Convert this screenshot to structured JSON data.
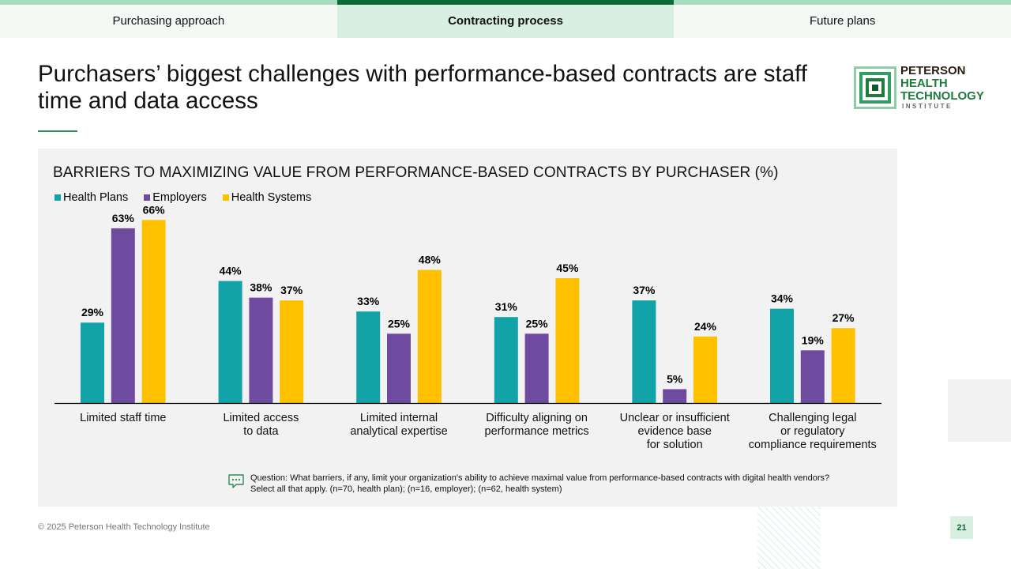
{
  "tabs": [
    {
      "label": "Purchasing approach"
    },
    {
      "label": "Contracting process"
    },
    {
      "label": "Future plans"
    }
  ],
  "title": "Purchasers’ biggest challenges with performance-based contracts are staff time and data access",
  "logo": {
    "line1": "PETERSON",
    "line2": "HEALTH",
    "line3": "TECHNOLOGY",
    "line4": "INSTITUTE"
  },
  "colors": {
    "health_plans": "#12a3a8",
    "employers": "#6f4ba0",
    "health_systems": "#ffc000"
  },
  "chart_data": {
    "type": "bar",
    "title": "BARRIERS TO MAXIMIZING VALUE FROM PERFORMANCE-BASED CONTRACTS BY PURCHASER (%)",
    "categories": [
      [
        "Limited staff time"
      ],
      [
        "Limited access",
        "to data"
      ],
      [
        "Limited internal",
        "analytical expertise"
      ],
      [
        "Difficulty aligning on",
        "performance metrics"
      ],
      [
        "Unclear or insufficient",
        "evidence base",
        "for solution"
      ],
      [
        "Challenging legal",
        "or regulatory",
        "compliance requirements"
      ]
    ],
    "series": [
      {
        "name": "Health Plans",
        "values": [
          29,
          44,
          33,
          31,
          37,
          34
        ]
      },
      {
        "name": "Employers",
        "values": [
          63,
          38,
          25,
          25,
          5,
          19
        ]
      },
      {
        "name": "Health Systems",
        "values": [
          66,
          37,
          48,
          45,
          24,
          27
        ]
      }
    ],
    "value_suffix": "%",
    "ylim": [
      0,
      70
    ],
    "legend": "top-left"
  },
  "note": {
    "line1": "Question: What barriers, if any, limit your organization's ability to achieve maximal value from performance-based contracts with digital health vendors?",
    "line2": "Select all that apply. (n=70, health plan); (n=16, employer); (n=62, health system)"
  },
  "footer": {
    "copyright": "© 2025 Peterson Health Technology Institute"
  },
  "page_number": "21"
}
